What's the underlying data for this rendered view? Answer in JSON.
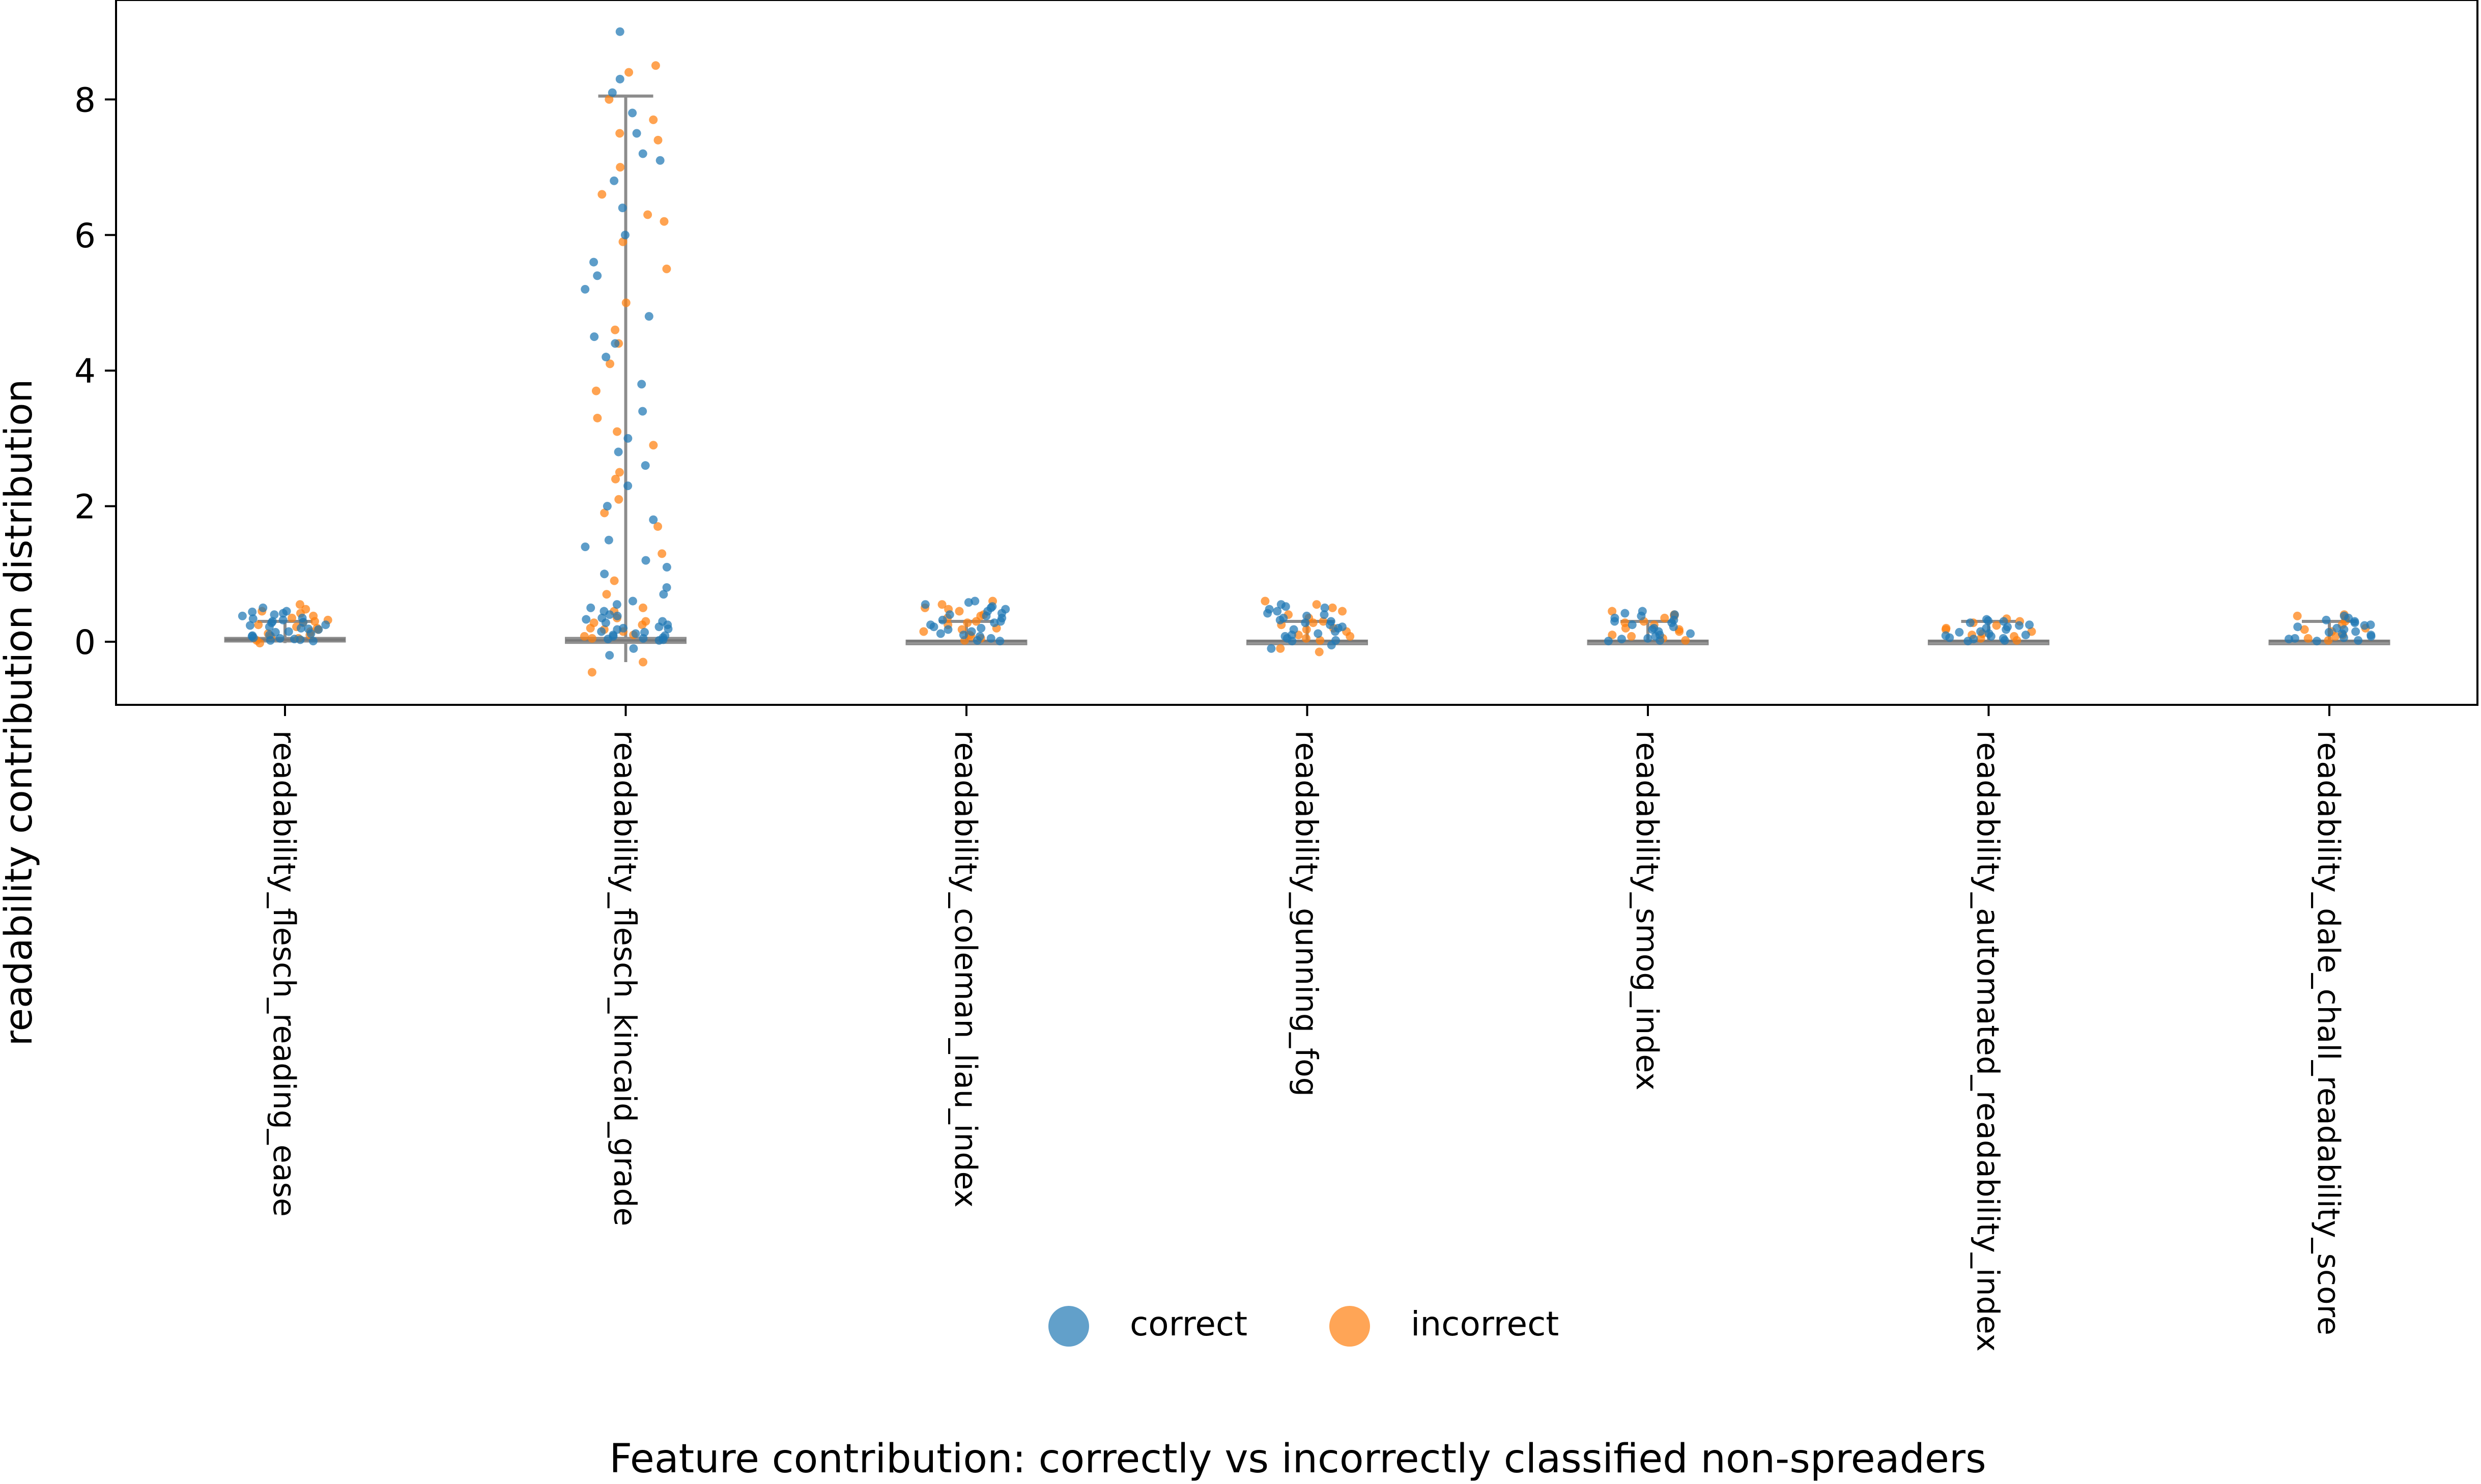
{
  "chart_data": {
    "type": "scatter",
    "subtype": "strip plot with box summary per feature",
    "title": "",
    "xlabel": "Feature contribution: correctly vs incorrectly classified non-spreaders",
    "ylabel": "readability contribution distribution",
    "ylim": [
      -0.92,
      9.4
    ],
    "yticks": [
      0,
      2,
      4,
      6,
      8
    ],
    "grid": false,
    "legend_position": "bottom-center",
    "categories": [
      "readability_flesch_reading_ease",
      "readability_flesch_kincaid_grade",
      "readability_coleman_liau_index",
      "readability_gunning_fog",
      "readability_smog_index",
      "readability_automated_readability_index",
      "readability_dale_chall_readability_score"
    ],
    "series": [
      {
        "name": "correct",
        "color": "#1f77b4"
      },
      {
        "name": "incorrect",
        "color": "#ff7f0e"
      }
    ],
    "box_summary": [
      {
        "q1": 0.0,
        "median": 0.03,
        "q3": 0.06,
        "whisker_low": -0.02,
        "whisker_high": 0.3
      },
      {
        "q1": -0.02,
        "median": 0.02,
        "q3": 0.06,
        "whisker_low": -0.3,
        "whisker_high": 8.05
      },
      {
        "q1": 0.0,
        "median": 0.01,
        "q3": 0.02,
        "whisker_low": -0.02,
        "whisker_high": 0.3
      },
      {
        "q1": 0.0,
        "median": 0.01,
        "q3": 0.02,
        "whisker_low": -0.05,
        "whisker_high": 0.3
      },
      {
        "q1": 0.0,
        "median": 0.01,
        "q3": 0.02,
        "whisker_low": -0.02,
        "whisker_high": 0.3
      },
      {
        "q1": 0.0,
        "median": 0.01,
        "q3": 0.02,
        "whisker_low": -0.02,
        "whisker_high": 0.3
      },
      {
        "q1": 0.0,
        "median": 0.01,
        "q3": 0.02,
        "whisker_low": -0.02,
        "whisker_high": 0.3
      }
    ],
    "points": [
      {
        "series": "correct",
        "values": [
          [
            0.03,
            0.05,
            0.1,
            0.2,
            0.3,
            0.4,
            0.5,
            0.02,
            0.08,
            0.15,
            0.25,
            0.35,
            0.45,
            0.01,
            0.12,
            0.22,
            0.32,
            0.42,
            0.06,
            0.18,
            0.28,
            0.38,
            0.04,
            0.14,
            0.24,
            0.34,
            0.44,
            0.09,
            0.19,
            0.29
          ],
          [
            0.05,
            0.1,
            0.15,
            0.2,
            0.3,
            0.4,
            0.5,
            0.02,
            0.08,
            0.25,
            0.35,
            0.45,
            0.6,
            0.8,
            1.0,
            1.2,
            1.5,
            1.8,
            2.0,
            2.3,
            2.6,
            3.0,
            3.4,
            3.8,
            4.2,
            4.5,
            4.8,
            5.2,
            5.6,
            6.0,
            6.4,
            6.8,
            7.2,
            7.5,
            7.8,
            8.1,
            8.3,
            9.0,
            -0.1,
            -0.2,
            0.03,
            0.06,
            0.12,
            0.18,
            0.22,
            0.28,
            0.33,
            0.38,
            0.55,
            0.7,
            1.1,
            1.4,
            2.8,
            4.4,
            5.4,
            7.1,
            0.04,
            0.09,
            0.14,
            0.19
          ],
          [
            0.05,
            0.1,
            0.2,
            0.3,
            0.4,
            0.5,
            0.6,
            0.02,
            0.15,
            0.25,
            0.35,
            0.45,
            0.55,
            0.08,
            0.18,
            0.28,
            0.38,
            0.48,
            0.58,
            0.01,
            0.12,
            0.22,
            0.32,
            0.42,
            0.52
          ],
          [
            0.05,
            0.1,
            0.2,
            0.3,
            0.4,
            0.5,
            0.55,
            0.02,
            0.15,
            0.25,
            0.35,
            0.45,
            -0.1,
            0.08,
            0.18,
            0.28,
            0.38,
            0.48,
            0.01,
            0.12,
            0.22,
            0.32,
            0.42,
            0.52,
            -0.05
          ],
          [
            0.05,
            0.1,
            0.2,
            0.3,
            0.4,
            0.45,
            0.02,
            0.15,
            0.25,
            0.35,
            0.08,
            0.18,
            0.28,
            0.38,
            0.01,
            0.12,
            0.22,
            0.32,
            0.42,
            0.04
          ],
          [
            0.05,
            0.1,
            0.15,
            0.2,
            0.25,
            0.3,
            0.33,
            0.02,
            0.08,
            0.12,
            0.18,
            0.22,
            0.28,
            0.01,
            0.06,
            0.14,
            0.24,
            0.31,
            0.04,
            0.09
          ],
          [
            0.05,
            0.1,
            0.15,
            0.2,
            0.25,
            0.3,
            0.35,
            0.02,
            0.08,
            0.12,
            0.18,
            0.22,
            0.28,
            0.01,
            0.06,
            0.14,
            0.24,
            0.32,
            0.04,
            0.38
          ]
        ]
      },
      {
        "series": "incorrect",
        "values": [
          [
            0.05,
            0.12,
            0.22,
            0.32,
            0.42,
            0.55,
            0.02,
            0.18,
            0.28,
            0.38,
            0.48,
            0.08,
            0.15,
            0.25,
            0.35,
            0.45,
            -0.02,
            0.1,
            0.2,
            0.3
          ],
          [
            0.05,
            0.15,
            0.3,
            0.45,
            0.7,
            0.9,
            1.3,
            1.7,
            2.1,
            2.5,
            2.9,
            3.3,
            3.7,
            4.1,
            4.6,
            5.0,
            5.5,
            5.9,
            6.3,
            6.6,
            7.0,
            7.4,
            7.7,
            8.0,
            8.4,
            8.5,
            -0.3,
            -0.45,
            0.1,
            0.2,
            0.25,
            0.35,
            0.5,
            1.9,
            2.4,
            3.1,
            4.4,
            6.2,
            7.5,
            0.08,
            0.18,
            0.28
          ],
          [
            0.05,
            0.15,
            0.25,
            0.35,
            0.45,
            0.55,
            0.6,
            0.02,
            0.1,
            0.2,
            0.3,
            0.4,
            0.5,
            0.08,
            0.18,
            0.28,
            0.38,
            0.48
          ],
          [
            0.05,
            0.15,
            0.25,
            0.35,
            0.45,
            0.55,
            0.6,
            -0.15,
            0.02,
            0.1,
            0.2,
            0.3,
            0.4,
            0.5,
            0.08,
            0.18,
            -0.1,
            0.28
          ],
          [
            0.05,
            0.15,
            0.25,
            0.35,
            0.45,
            0.02,
            0.1,
            0.2,
            0.3,
            0.4,
            0.08,
            0.18,
            0.28,
            0.38
          ],
          [
            0.05,
            0.12,
            0.2,
            0.28,
            0.34,
            0.02,
            0.08,
            0.15,
            0.24,
            0.3,
            0.1,
            0.18
          ],
          [
            0.05,
            0.15,
            0.25,
            0.35,
            0.4,
            0.02,
            0.1,
            0.2,
            0.3,
            0.38,
            0.08,
            0.18
          ]
        ]
      }
    ]
  }
}
